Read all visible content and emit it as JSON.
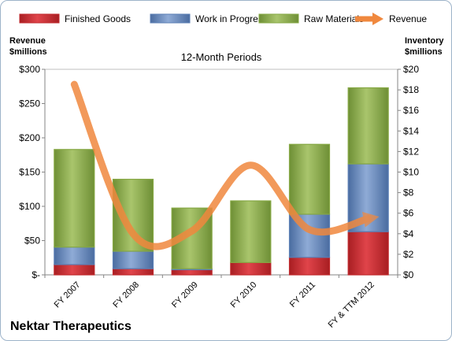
{
  "chart_data": {
    "type": "bar",
    "stacked": true,
    "title": "12-Month Periods",
    "company": "Nektar Therapeutics",
    "categories": [
      "FY 2007",
      "FY 2008",
      "FY 2009",
      "FY 2010",
      "FY 2011",
      "FY & TTM 2012"
    ],
    "series": [
      {
        "name": "Finished Goods",
        "axis": "right",
        "color": "#c0282c",
        "values": [
          1.0,
          0.6,
          0.5,
          1.2,
          1.7,
          4.2
        ]
      },
      {
        "name": "Work in Progress",
        "axis": "right",
        "color": "#5b7fb5",
        "values": [
          1.7,
          1.7,
          0.1,
          0.0,
          4.2,
          6.6
        ]
      },
      {
        "name": "Raw Materials",
        "axis": "right",
        "color": "#86a844",
        "values": [
          9.5,
          7.0,
          5.9,
          6.0,
          6.8,
          7.4
        ]
      }
    ],
    "line": {
      "name": "Revenue",
      "axis": "left",
      "color": "#f0883e",
      "values": [
        278,
        60,
        64,
        160,
        66,
        82
      ]
    },
    "left_axis": {
      "title_line1": "Revenue",
      "title_line2": "$millions",
      "ylim": [
        0,
        300
      ],
      "ticks": [
        0,
        50,
        100,
        150,
        200,
        250,
        300
      ],
      "tick_labels": [
        "$-",
        "$50",
        "$100",
        "$150",
        "$200",
        "$250",
        "$300"
      ]
    },
    "right_axis": {
      "title_line1": "Inventory",
      "title_line2": "$millions",
      "ylim": [
        0,
        20
      ],
      "ticks": [
        0,
        2,
        4,
        6,
        8,
        10,
        12,
        14,
        16,
        18,
        20
      ],
      "tick_labels": [
        "$0",
        "$2",
        "$4",
        "$6",
        "$8",
        "$10",
        "$12",
        "$14",
        "$16",
        "$18",
        "$20"
      ]
    },
    "legend_position": "top",
    "grid": false
  }
}
